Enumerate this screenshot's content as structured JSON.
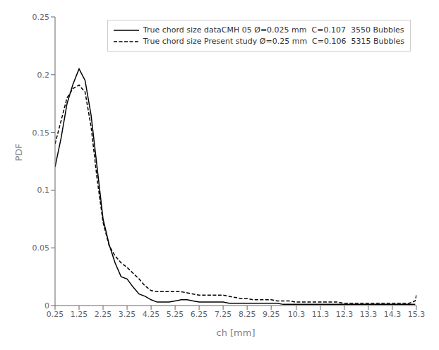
{
  "chart_data": {
    "type": "line",
    "xlabel": "ch [mm]",
    "ylabel": "PDF",
    "xlim": [
      0.25,
      15.3
    ],
    "ylim": [
      0.0,
      0.25
    ],
    "xticks": [
      0.25,
      1.25,
      2.25,
      3.25,
      4.25,
      5.25,
      6.25,
      7.25,
      8.25,
      9.25,
      10.3,
      11.3,
      12.3,
      13.3,
      14.3,
      15.3
    ],
    "yticks": [
      0,
      0.05,
      0.1,
      0.15,
      0.2,
      0.25
    ],
    "grid": false,
    "legend": "upper right",
    "series": [
      {
        "name": "True chord size dataCMH 05 Ø=0.025 mm  C=0.107  3550 Bubbles",
        "color": "#000000",
        "line_style": "solid",
        "x": [
          0.25,
          0.5,
          0.75,
          1.0,
          1.25,
          1.5,
          1.75,
          2.0,
          2.25,
          2.5,
          2.75,
          3.0,
          3.25,
          3.5,
          3.75,
          4.0,
          4.25,
          4.5,
          4.75,
          5.0,
          5.25,
          5.5,
          5.75,
          6.0,
          6.25,
          6.5,
          6.75,
          7.0,
          7.25,
          7.5,
          7.75,
          8.0,
          8.25,
          8.5,
          8.75,
          9.0,
          9.25,
          9.5,
          9.75,
          10.0,
          10.25,
          10.5,
          10.75,
          11.0,
          11.25,
          11.5,
          11.75,
          12.0,
          12.25,
          12.5,
          12.75,
          13.0,
          13.25,
          13.5,
          13.75,
          14.0,
          14.25,
          14.5,
          14.75,
          15.0,
          15.25
        ],
        "values": [
          0.12,
          0.145,
          0.175,
          0.192,
          0.205,
          0.195,
          0.165,
          0.12,
          0.075,
          0.053,
          0.037,
          0.025,
          0.023,
          0.016,
          0.01,
          0.008,
          0.005,
          0.003,
          0.003,
          0.003,
          0.004,
          0.005,
          0.005,
          0.004,
          0.003,
          0.003,
          0.003,
          0.003,
          0.003,
          0.002,
          0.002,
          0.002,
          0.002,
          0.002,
          0.002,
          0.002,
          0.002,
          0.002,
          0.001,
          0.001,
          0.001,
          0.001,
          0.001,
          0.001,
          0.001,
          0.001,
          0.001,
          0.001,
          0.001,
          0.001,
          0.001,
          0.001,
          0.001,
          0.001,
          0.001,
          0.001,
          0.001,
          0.001,
          0.001,
          0.001,
          0.001
        ]
      },
      {
        "name": "True chord size Present study Ø=0.25 mm  C=0.106  5315 Bubbles",
        "color": "#000000",
        "line_style": "dashed",
        "x": [
          0.25,
          0.5,
          0.75,
          1.0,
          1.25,
          1.5,
          1.75,
          2.0,
          2.25,
          2.5,
          2.75,
          3.0,
          3.25,
          3.5,
          3.75,
          4.0,
          4.25,
          4.5,
          4.75,
          5.0,
          5.25,
          5.5,
          5.75,
          6.0,
          6.25,
          6.5,
          6.75,
          7.0,
          7.25,
          7.5,
          7.75,
          8.0,
          8.25,
          8.5,
          8.75,
          9.0,
          9.25,
          9.5,
          9.75,
          10.0,
          10.25,
          10.5,
          10.75,
          11.0,
          11.25,
          11.5,
          11.75,
          12.0,
          12.25,
          12.5,
          12.75,
          13.0,
          13.25,
          13.5,
          13.75,
          14.0,
          14.25,
          14.5,
          14.75,
          15.0,
          15.25,
          15.3
        ],
        "values": [
          0.14,
          0.16,
          0.18,
          0.188,
          0.191,
          0.185,
          0.155,
          0.11,
          0.072,
          0.052,
          0.043,
          0.037,
          0.033,
          0.028,
          0.023,
          0.017,
          0.013,
          0.012,
          0.012,
          0.012,
          0.012,
          0.012,
          0.011,
          0.01,
          0.009,
          0.009,
          0.009,
          0.009,
          0.009,
          0.008,
          0.007,
          0.006,
          0.006,
          0.005,
          0.005,
          0.005,
          0.005,
          0.004,
          0.004,
          0.004,
          0.003,
          0.003,
          0.003,
          0.003,
          0.003,
          0.003,
          0.003,
          0.003,
          0.002,
          0.002,
          0.002,
          0.002,
          0.002,
          0.002,
          0.002,
          0.002,
          0.002,
          0.002,
          0.002,
          0.002,
          0.004,
          0.009
        ]
      }
    ]
  }
}
